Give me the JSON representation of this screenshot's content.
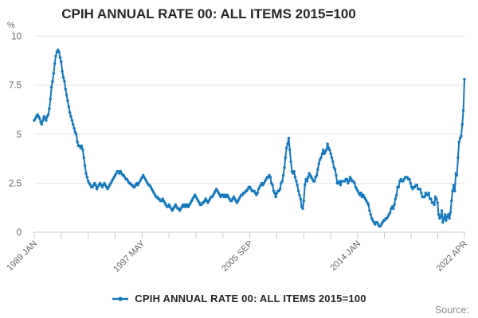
{
  "title": "CPIH ANNUAL RATE 00: ALL ITEMS 2015=100",
  "legend": {
    "label": "CPIH ANNUAL RATE 00: ALL ITEMS 2015=100"
  },
  "source_label": "Source:",
  "y_axis": {
    "unit_label": "%",
    "ticks": [
      0,
      2.5,
      5,
      7.5,
      10
    ],
    "min": 0,
    "max": 10
  },
  "x_axis": {
    "tick_labels": [
      "1989 JAN",
      "1997 MAY",
      "2005 SEP",
      "2014 JAN",
      "2022 APR"
    ],
    "major_tick_months": [
      0,
      100,
      200,
      300,
      399
    ],
    "minor_divisions_per_interval": 4
  },
  "colors": {
    "line": "#1478be",
    "grid": "#e6e6e6",
    "axis": "#c2cdda",
    "tick_text": "#666666",
    "title_text": "#262626",
    "source_text": "#8c8c8c"
  },
  "chart_data": {
    "type": "line",
    "title": "CPIH ANNUAL RATE 00: ALL ITEMS 2015=100",
    "ylabel": "%",
    "ylim": [
      0,
      10
    ],
    "x_start": "1989 JAN",
    "x_end": "2022 APR",
    "frequency": "monthly",
    "legend_position": "bottom",
    "grid": "horizontal",
    "values": [
      5.7,
      5.8,
      5.9,
      6.0,
      5.9,
      5.8,
      5.6,
      5.5,
      5.7,
      5.9,
      5.8,
      5.7,
      5.9,
      6.0,
      6.3,
      6.8,
      7.4,
      7.7,
      8.1,
      8.6,
      9.0,
      9.2,
      9.3,
      9.2,
      8.9,
      8.7,
      8.2,
      7.9,
      7.7,
      7.3,
      7.0,
      6.7,
      6.4,
      6.1,
      5.9,
      5.7,
      5.5,
      5.3,
      5.1,
      5.0,
      4.6,
      4.4,
      4.4,
      4.3,
      4.4,
      4.2,
      3.8,
      3.4,
      3.0,
      2.8,
      2.6,
      2.5,
      2.4,
      2.3,
      2.3,
      2.4,
      2.5,
      2.4,
      2.2,
      2.3,
      2.4,
      2.5,
      2.4,
      2.3,
      2.4,
      2.5,
      2.4,
      2.3,
      2.2,
      2.3,
      2.4,
      2.5,
      2.6,
      2.7,
      2.8,
      2.9,
      3.0,
      3.1,
      3.1,
      3.0,
      3.1,
      3.0,
      2.9,
      2.9,
      2.8,
      2.7,
      2.7,
      2.6,
      2.5,
      2.5,
      2.4,
      2.4,
      2.3,
      2.3,
      2.4,
      2.5,
      2.4,
      2.5,
      2.6,
      2.7,
      2.8,
      2.9,
      2.8,
      2.7,
      2.6,
      2.5,
      2.4,
      2.4,
      2.3,
      2.2,
      2.1,
      2.0,
      1.9,
      1.8,
      1.8,
      1.7,
      1.7,
      1.6,
      1.6,
      1.7,
      1.6,
      1.5,
      1.4,
      1.3,
      1.3,
      1.4,
      1.3,
      1.2,
      1.1,
      1.2,
      1.3,
      1.4,
      1.3,
      1.2,
      1.2,
      1.1,
      1.2,
      1.3,
      1.4,
      1.3,
      1.4,
      1.3,
      1.4,
      1.3,
      1.4,
      1.5,
      1.6,
      1.7,
      1.8,
      1.9,
      1.8,
      1.7,
      1.6,
      1.5,
      1.4,
      1.4,
      1.5,
      1.5,
      1.6,
      1.7,
      1.6,
      1.5,
      1.6,
      1.7,
      1.8,
      1.8,
      1.9,
      2.0,
      2.1,
      2.2,
      2.1,
      2.0,
      1.9,
      1.8,
      1.9,
      1.9,
      1.8,
      1.9,
      1.8,
      1.9,
      1.8,
      1.7,
      1.6,
      1.6,
      1.7,
      1.8,
      1.7,
      1.6,
      1.5,
      1.6,
      1.7,
      1.8,
      1.9,
      1.9,
      2.0,
      2.0,
      2.1,
      2.1,
      2.2,
      2.3,
      2.3,
      2.2,
      2.1,
      2.1,
      2.1,
      2.0,
      1.9,
      2.0,
      2.2,
      2.3,
      2.4,
      2.5,
      2.4,
      2.5,
      2.6,
      2.7,
      2.8,
      2.8,
      2.9,
      2.8,
      2.5,
      2.4,
      2.1,
      2.0,
      1.8,
      2.0,
      2.1,
      2.1,
      2.2,
      2.5,
      2.6,
      2.9,
      3.3,
      3.8,
      4.3,
      4.5,
      4.8,
      4.2,
      3.6,
      3.1,
      3.0,
      3.1,
      2.8,
      2.6,
      2.4,
      2.1,
      1.9,
      1.7,
      1.3,
      1.2,
      1.6,
      2.4,
      2.7,
      2.6,
      2.8,
      3.0,
      2.9,
      2.8,
      2.7,
      2.6,
      2.6,
      2.8,
      2.9,
      3.2,
      3.5,
      3.7,
      3.8,
      4.0,
      4.2,
      4.0,
      4.1,
      4.2,
      4.5,
      4.3,
      4.2,
      4.0,
      3.8,
      3.6,
      3.3,
      3.2,
      2.9,
      2.5,
      2.5,
      2.6,
      2.4,
      2.6,
      2.6,
      2.6,
      2.6,
      2.7,
      2.7,
      2.5,
      2.6,
      2.8,
      2.7,
      2.6,
      2.6,
      2.5,
      2.3,
      2.2,
      2.1,
      2.0,
      1.9,
      2.0,
      1.8,
      1.9,
      1.8,
      1.7,
      1.6,
      1.5,
      1.4,
      1.1,
      0.9,
      0.7,
      0.6,
      0.5,
      0.4,
      0.5,
      0.5,
      0.4,
      0.3,
      0.3,
      0.4,
      0.5,
      0.6,
      0.6,
      0.7,
      0.7,
      0.8,
      0.9,
      1.0,
      1.2,
      1.3,
      1.2,
      1.4,
      1.7,
      1.9,
      2.3,
      2.3,
      2.6,
      2.7,
      2.6,
      2.6,
      2.7,
      2.8,
      2.8,
      2.8,
      2.7,
      2.7,
      2.5,
      2.3,
      2.2,
      2.3,
      2.3,
      2.4,
      2.4,
      2.2,
      2.2,
      2.2,
      2.0,
      1.8,
      1.8,
      1.8,
      2.0,
      1.9,
      1.9,
      2.0,
      1.7,
      1.7,
      1.5,
      1.5,
      1.4,
      1.8,
      1.7,
      1.5,
      0.9,
      0.7,
      0.8,
      1.1,
      0.5,
      0.7,
      0.9,
      0.6,
      0.8,
      0.9,
      0.7,
      1.0,
      1.6,
      2.1,
      2.4,
      2.1,
      3.0,
      2.9,
      3.8,
      4.6,
      4.8,
      4.9,
      5.5,
      6.2,
      7.8
    ]
  }
}
